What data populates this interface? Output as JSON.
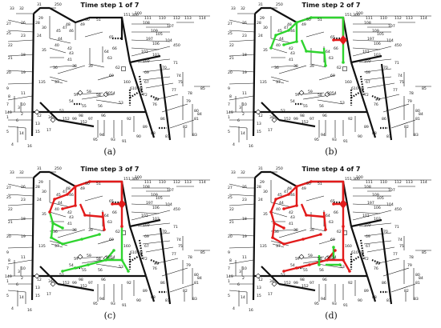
{
  "colors": {
    "ink": "#111111",
    "energized": "#2fd42f",
    "faulted": "#e21b1b"
  },
  "panels": [
    {
      "title": "Time step 1 of 7",
      "caption": "(a)",
      "green": [],
      "red": []
    },
    {
      "title": "Time step 2 of 7",
      "caption": "(b)",
      "green": [
        "T1",
        "T2",
        "T3",
        "T4",
        "T5",
        "T6",
        "T7"
      ],
      "red": [
        "R0"
      ]
    },
    {
      "title": "Time step 3 of 7",
      "caption": "(c)",
      "green": [
        "D1",
        "D2",
        "D3",
        "D4",
        "D5",
        "D6",
        "D7",
        "D8"
      ],
      "red": [
        "R0",
        "T1",
        "T2",
        "T3",
        "T4",
        "T5",
        "T6",
        "T7"
      ]
    },
    {
      "title": "Time step 4 of 7",
      "caption": "(d)",
      "green": [
        "F1",
        "F2",
        "F3"
      ],
      "red": [
        "R0",
        "T1",
        "T2",
        "T3",
        "T4",
        "T5",
        "T6",
        "T7",
        "D1",
        "D2",
        "D3",
        "D4",
        "D5",
        "D6",
        "D7",
        "D8"
      ]
    }
  ],
  "node_labels": [
    {
      "id": "n1",
      "text": "33"
    },
    {
      "id": "n2",
      "text": "32"
    },
    {
      "id": "n3",
      "text": "31"
    },
    {
      "id": "n4",
      "text": "250"
    },
    {
      "id": "n5",
      "text": "27"
    },
    {
      "id": "n6",
      "text": "26"
    },
    {
      "id": "n7",
      "text": "28"
    },
    {
      "id": "n8",
      "text": "29"
    },
    {
      "id": "n9",
      "text": "30"
    },
    {
      "id": "n10",
      "text": "25"
    },
    {
      "id": "n11",
      "text": "23"
    },
    {
      "id": "n12",
      "text": "24"
    },
    {
      "id": "n13",
      "text": "22"
    },
    {
      "id": "n14",
      "text": "21"
    },
    {
      "id": "n15",
      "text": "18"
    },
    {
      "id": "n16",
      "text": "20"
    },
    {
      "id": "n17",
      "text": "19"
    },
    {
      "id": "n18",
      "text": "135"
    },
    {
      "id": "n19",
      "text": "35"
    },
    {
      "id": "n20",
      "text": "40"
    },
    {
      "id": "n21",
      "text": "44"
    },
    {
      "id": "n22",
      "text": "45"
    },
    {
      "id": "n23",
      "text": "46"
    },
    {
      "id": "n24",
      "text": "47"
    },
    {
      "id": "n25",
      "text": "48"
    },
    {
      "id": "n26",
      "text": "49"
    },
    {
      "id": "n27",
      "text": "50"
    },
    {
      "id": "n28",
      "text": "51"
    },
    {
      "id": "n29",
      "text": "151"
    },
    {
      "id": "n30",
      "text": "300"
    },
    {
      "id": "n31",
      "text": "42"
    },
    {
      "id": "n32",
      "text": "43"
    },
    {
      "id": "n33",
      "text": "41"
    },
    {
      "id": "n34",
      "text": "36"
    },
    {
      "id": "n35",
      "text": "37"
    },
    {
      "id": "n36",
      "text": "38"
    },
    {
      "id": "n37",
      "text": "39"
    },
    {
      "id": "n38",
      "text": "65"
    },
    {
      "id": "n39",
      "text": "66"
    },
    {
      "id": "n40",
      "text": "64"
    },
    {
      "id": "n41",
      "text": "63"
    },
    {
      "id": "n42",
      "text": "62"
    },
    {
      "id": "n43",
      "text": "60"
    },
    {
      "id": "n44",
      "text": "59"
    },
    {
      "id": "n45",
      "text": "58"
    },
    {
      "id": "n46",
      "text": "57"
    },
    {
      "id": "n47",
      "text": "54"
    },
    {
      "id": "n48",
      "text": "55"
    },
    {
      "id": "n49",
      "text": "56"
    },
    {
      "id": "n50",
      "text": "53"
    },
    {
      "id": "n51",
      "text": "52"
    },
    {
      "id": "n52",
      "text": "2054"
    },
    {
      "id": "n53",
      "text": "610"
    },
    {
      "id": "n54",
      "text": "160"
    },
    {
      "id": "n55",
      "text": "67"
    },
    {
      "id": "n56",
      "text": "68"
    },
    {
      "id": "n57",
      "text": "69"
    },
    {
      "id": "n58",
      "text": "70"
    },
    {
      "id": "n59",
      "text": "71"
    },
    {
      "id": "n60",
      "text": "72"
    },
    {
      "id": "n61",
      "text": "73"
    },
    {
      "id": "n62",
      "text": "74"
    },
    {
      "id": "n63",
      "text": "75"
    },
    {
      "id": "n64",
      "text": "76"
    },
    {
      "id": "n65",
      "text": "77"
    },
    {
      "id": "n66",
      "text": "78"
    },
    {
      "id": "n67",
      "text": "79"
    },
    {
      "id": "n68",
      "text": "80"
    },
    {
      "id": "n69",
      "text": "81"
    },
    {
      "id": "n70",
      "text": "82"
    },
    {
      "id": "n71",
      "text": "83"
    },
    {
      "id": "n72",
      "text": "84"
    },
    {
      "id": "n73",
      "text": "85"
    },
    {
      "id": "n74",
      "text": "86"
    },
    {
      "id": "n75",
      "text": "87"
    },
    {
      "id": "n76",
      "text": "88"
    },
    {
      "id": "n77",
      "text": "89"
    },
    {
      "id": "n78",
      "text": "90"
    },
    {
      "id": "n79",
      "text": "91"
    },
    {
      "id": "n80",
      "text": "92"
    },
    {
      "id": "n81",
      "text": "93"
    },
    {
      "id": "n82",
      "text": "94"
    },
    {
      "id": "n83",
      "text": "95"
    },
    {
      "id": "n84",
      "text": "96"
    },
    {
      "id": "n85",
      "text": "97"
    },
    {
      "id": "n86",
      "text": "98"
    },
    {
      "id": "n87",
      "text": "99"
    },
    {
      "id": "n88",
      "text": "152"
    },
    {
      "id": "n89",
      "text": "100"
    },
    {
      "id": "n90",
      "text": "101"
    },
    {
      "id": "n91",
      "text": "102"
    },
    {
      "id": "n92",
      "text": "103"
    },
    {
      "id": "n93",
      "text": "104"
    },
    {
      "id": "n94",
      "text": "105"
    },
    {
      "id": "n95",
      "text": "106"
    },
    {
      "id": "n96",
      "text": "107"
    },
    {
      "id": "n97",
      "text": "108"
    },
    {
      "id": "n98",
      "text": "109"
    },
    {
      "id": "n99",
      "text": "197"
    },
    {
      "id": "n100",
      "text": "450"
    },
    {
      "id": "n101",
      "text": "111"
    },
    {
      "id": "n102",
      "text": "110"
    },
    {
      "id": "n103",
      "text": "112"
    },
    {
      "id": "n104",
      "text": "113"
    },
    {
      "id": "n105",
      "text": "114"
    },
    {
      "id": "n106",
      "text": "34"
    },
    {
      "id": "n107",
      "text": "17"
    },
    {
      "id": "n108",
      "text": "15"
    },
    {
      "id": "n109",
      "text": "16"
    },
    {
      "id": "n110",
      "text": "14"
    },
    {
      "id": "n111",
      "text": "13"
    },
    {
      "id": "n112",
      "text": "12"
    },
    {
      "id": "n113",
      "text": "11"
    },
    {
      "id": "n114",
      "text": "10"
    },
    {
      "id": "n115",
      "text": "9"
    },
    {
      "id": "n116",
      "text": "8"
    },
    {
      "id": "n117",
      "text": "7"
    },
    {
      "id": "n118",
      "text": "6"
    },
    {
      "id": "n119",
      "text": "5"
    },
    {
      "id": "n120",
      "text": "4"
    },
    {
      "id": "n121",
      "text": "3"
    },
    {
      "id": "n122",
      "text": "2"
    },
    {
      "id": "n123",
      "text": "1"
    },
    {
      "id": "n124",
      "text": "149"
    },
    {
      "id": "n125",
      "text": "152"
    }
  ]
}
